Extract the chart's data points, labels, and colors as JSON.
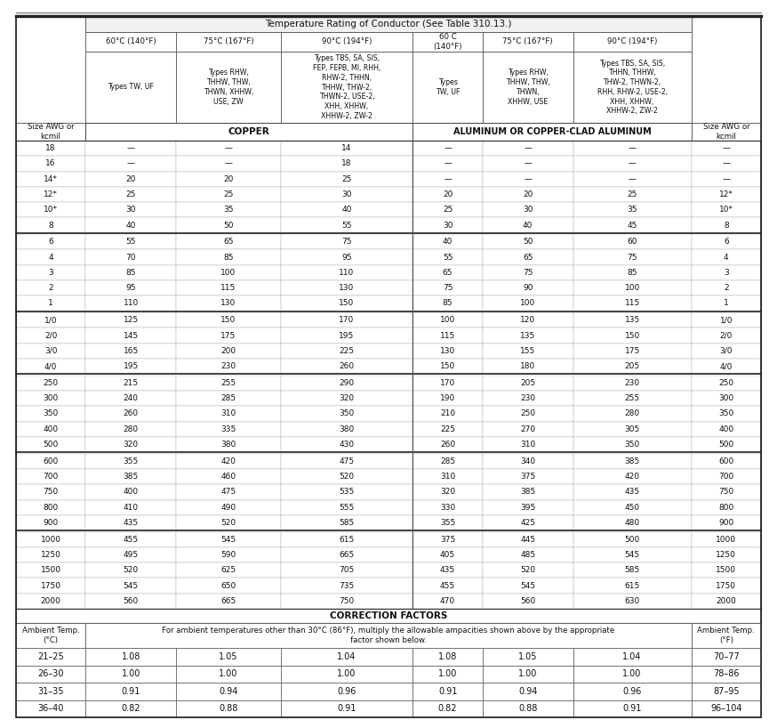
{
  "title": "Temperature Rating of Conductor (See Table 310.13.)",
  "temp_headers": [
    "60°C (140°F)",
    "75°C (167°F)",
    "90°C (194°F)",
    "60 C\n(140°F)",
    "75°C (167°F)",
    "90°C (194°F)"
  ],
  "wire_types": [
    "Types TW, UF",
    "Types RHW,\nTHHW, THW,\nTHWN, XHHW,\nUSE, ZW",
    "Types TBS, SA, SIS,\nFEP, FEPB, MI, RHH,\nRHW-2, THHN,\nTHHW, THW-2,\nTHWN-2, USE-2,\nXHH, XHHW,\nXHHW-2, ZW-2",
    "Types\nTW, UF",
    "Types RHW,\nTHHW, THW,\nTHWN,\nXHHW, USE",
    "Types TBS, SA, SIS,\nTHHN, THHW,\nTHW-2, THWN-2,\nRHH, RHW-2, USE-2,\nXHH, XHHW,\nXHHW-2, ZW-2"
  ],
  "size_label": "Size AWG or\nkcmil",
  "copper_label": "COPPER",
  "alum_label": "ALUMINUM OR COPPER-CLAD ALUMINUM",
  "data_rows": [
    [
      "18",
      "—",
      "—",
      "14",
      "—",
      "—",
      "—",
      "—"
    ],
    [
      "16",
      "—",
      "—",
      "18",
      "—",
      "—",
      "—",
      "—"
    ],
    [
      "14*",
      "20",
      "20",
      "25",
      "—",
      "—",
      "—",
      "—"
    ],
    [
      "12*",
      "25",
      "25",
      "30",
      "20",
      "20",
      "25",
      "12*"
    ],
    [
      "10*",
      "30",
      "35",
      "40",
      "25",
      "30",
      "35",
      "10*"
    ],
    [
      "8",
      "40",
      "50",
      "55",
      "30",
      "40",
      "45",
      "8"
    ],
    [
      "6",
      "55",
      "65",
      "75",
      "40",
      "50",
      "60",
      "6"
    ],
    [
      "4",
      "70",
      "85",
      "95",
      "55",
      "65",
      "75",
      "4"
    ],
    [
      "3",
      "85",
      "100",
      "110",
      "65",
      "75",
      "85",
      "3"
    ],
    [
      "2",
      "95",
      "115",
      "130",
      "75",
      "90",
      "100",
      "2"
    ],
    [
      "1",
      "110",
      "130",
      "150",
      "85",
      "100",
      "115",
      "1"
    ],
    [
      "1/0",
      "125",
      "150",
      "170",
      "100",
      "120",
      "135",
      "1/0"
    ],
    [
      "2/0",
      "145",
      "175",
      "195",
      "115",
      "135",
      "150",
      "2/0"
    ],
    [
      "3/0",
      "165",
      "200",
      "225",
      "130",
      "155",
      "175",
      "3/0"
    ],
    [
      "4/0",
      "195",
      "230",
      "260",
      "150",
      "180",
      "205",
      "4/0"
    ],
    [
      "250",
      "215",
      "255",
      "290",
      "170",
      "205",
      "230",
      "250"
    ],
    [
      "300",
      "240",
      "285",
      "320",
      "190",
      "230",
      "255",
      "300"
    ],
    [
      "350",
      "260",
      "310",
      "350",
      "210",
      "250",
      "280",
      "350"
    ],
    [
      "400",
      "280",
      "335",
      "380",
      "225",
      "270",
      "305",
      "400"
    ],
    [
      "500",
      "320",
      "380",
      "430",
      "260",
      "310",
      "350",
      "500"
    ],
    [
      "600",
      "355",
      "420",
      "475",
      "285",
      "340",
      "385",
      "600"
    ],
    [
      "700",
      "385",
      "460",
      "520",
      "310",
      "375",
      "420",
      "700"
    ],
    [
      "750",
      "400",
      "475",
      "535",
      "320",
      "385",
      "435",
      "750"
    ],
    [
      "800",
      "410",
      "490",
      "555",
      "330",
      "395",
      "450",
      "800"
    ],
    [
      "900",
      "435",
      "520",
      "585",
      "355",
      "425",
      "480",
      "900"
    ],
    [
      "1000",
      "455",
      "545",
      "615",
      "375",
      "445",
      "500",
      "1000"
    ],
    [
      "1250",
      "495",
      "590",
      "665",
      "405",
      "485",
      "545",
      "1250"
    ],
    [
      "1500",
      "520",
      "625",
      "705",
      "435",
      "520",
      "585",
      "1500"
    ],
    [
      "1750",
      "545",
      "650",
      "735",
      "455",
      "545",
      "615",
      "1750"
    ],
    [
      "2000",
      "560",
      "665",
      "750",
      "470",
      "560",
      "630",
      "2000"
    ]
  ],
  "groups": [
    6,
    5,
    4,
    5,
    5,
    5
  ],
  "correction_header": "CORRECTION FACTORS",
  "correction_note": "For ambient temperatures other than 30°C (86°F), multiply the allowable ampacities shown above by the appropriate\nfactor shown below.",
  "ambient_label_c": "Ambient Temp.\n(°C)",
  "ambient_label_f": "Ambient Temp.\n(°F)",
  "correction_rows": [
    [
      "21–25",
      "1.08",
      "1.05",
      "1.04",
      "1.08",
      "1.05",
      "1.04",
      "70–77"
    ],
    [
      "26–30",
      "1.00",
      "1.00",
      "1.00",
      "1.00",
      "1.00",
      "1.00",
      "78–86"
    ],
    [
      "31–35",
      "0.91",
      "0.94",
      "0.96",
      "0.91",
      "0.94",
      "0.96",
      "87–95"
    ],
    [
      "36–40",
      "0.82",
      "0.88",
      "0.91",
      "0.82",
      "0.88",
      "0.91",
      "96–104"
    ]
  ]
}
